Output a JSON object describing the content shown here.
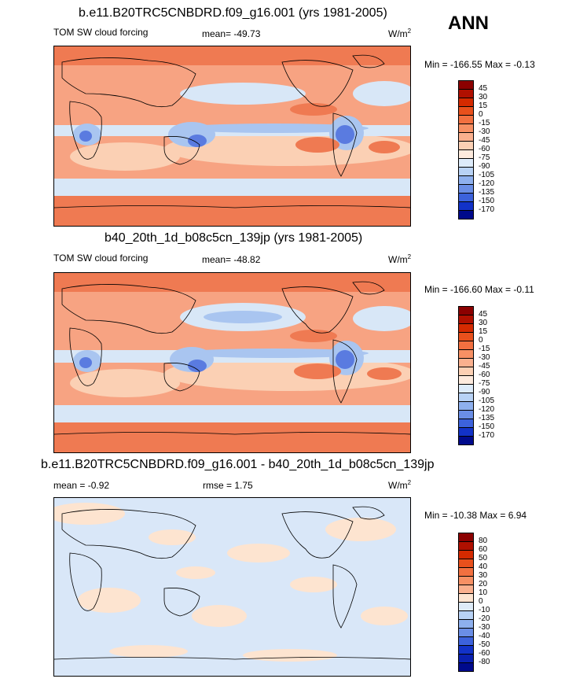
{
  "season": "ANN",
  "panels": [
    {
      "title": "b.e11.B20TRC5CNBDRD.f09_g16.001 (yrs 1981-2005)",
      "left_label": "TOM SW cloud forcing",
      "center_label": "mean= -49.73",
      "units_base": "W/m",
      "units_exp": "2",
      "minmax": "Min = -166.55 Max =  -0.13",
      "colorbar": {
        "labels": [
          "45",
          "30",
          "15",
          "0",
          "-15",
          "-30",
          "-45",
          "-60",
          "-75",
          "-90",
          "-105",
          "-120",
          "-135",
          "-150",
          "-170"
        ],
        "colors": [
          "#8b0000",
          "#b01000",
          "#d42a00",
          "#e8501c",
          "#f27040",
          "#f79064",
          "#fab08e",
          "#fcd0b4",
          "#fdeadd",
          "#ddebfa",
          "#b8d2f5",
          "#8eb0ee",
          "#6a8ee6",
          "#3c62dc",
          "#1232c8",
          "#000a8c"
        ]
      }
    },
    {
      "title": "b40_20th_1d_b08c5cn_139jp (yrs 1981-2005)",
      "left_label": "TOM SW cloud forcing",
      "center_label": "mean= -48.82",
      "units_base": "W/m",
      "units_exp": "2",
      "minmax": "Min = -166.60 Max =  -0.11",
      "colorbar": {
        "labels": [
          "45",
          "30",
          "15",
          "0",
          "-15",
          "-30",
          "-45",
          "-60",
          "-75",
          "-90",
          "-105",
          "-120",
          "-135",
          "-150",
          "-170"
        ],
        "colors": [
          "#8b0000",
          "#b01000",
          "#d42a00",
          "#e8501c",
          "#f27040",
          "#f79064",
          "#fab08e",
          "#fcd0b4",
          "#fdeadd",
          "#ddebfa",
          "#b8d2f5",
          "#8eb0ee",
          "#6a8ee6",
          "#3c62dc",
          "#1232c8",
          "#000a8c"
        ]
      }
    },
    {
      "title": "b.e11.B20TRC5CNBDRD.f09_g16.001 - b40_20th_1d_b08c5cn_139jp",
      "left_label": "mean =  -0.92",
      "center_label": "rmse =   1.75",
      "units_base": "W/m",
      "units_exp": "2",
      "minmax": "Min = -10.38 Max =   6.94",
      "colorbar": {
        "labels": [
          "80",
          "60",
          "50",
          "40",
          "30",
          "20",
          "10",
          "0",
          "-10",
          "-20",
          "-30",
          "-40",
          "-50",
          "-60",
          "-80"
        ],
        "colors": [
          "#8b0000",
          "#b01000",
          "#d42a00",
          "#e8501c",
          "#f27040",
          "#f79064",
          "#fab08e",
          "#fde4d0",
          "#deebf8",
          "#b8d2f5",
          "#8eb0ee",
          "#6a8ee6",
          "#3c62dc",
          "#1232c8",
          "#0a20b0",
          "#000a8c"
        ]
      }
    }
  ],
  "map_colors": {
    "warm_strong": "#ef7a52",
    "warm_mid": "#f7a382",
    "warm_light": "#fbd0b4",
    "neutral": "#fde8d8",
    "cool_light": "#d8e7f7",
    "cool_mid": "#a9c5f0",
    "cool_strong": "#5a7be0",
    "diff_pos": "#fde4d0",
    "diff_neg": "#d9e7f8"
  }
}
